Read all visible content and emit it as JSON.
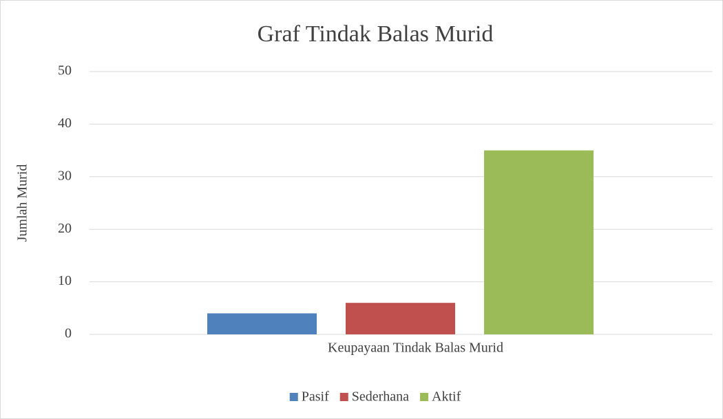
{
  "chart_data": {
    "type": "bar",
    "title": "Graf Tindak Balas Murid",
    "ylabel": "Jumlah Murid",
    "categories": [
      "Keupayaan Tindak Balas Murid"
    ],
    "series": [
      {
        "name": "Pasif",
        "color": "#4f81bd",
        "values": [
          4
        ]
      },
      {
        "name": "Sederhana",
        "color": "#c0504d",
        "values": [
          6
        ]
      },
      {
        "name": "Aktif",
        "color": "#9bbb59",
        "values": [
          35
        ]
      }
    ],
    "ylim": [
      0,
      50
    ],
    "yticks": [
      0,
      10,
      20,
      30,
      40,
      50
    ],
    "grid": true,
    "legend": "bottom"
  }
}
